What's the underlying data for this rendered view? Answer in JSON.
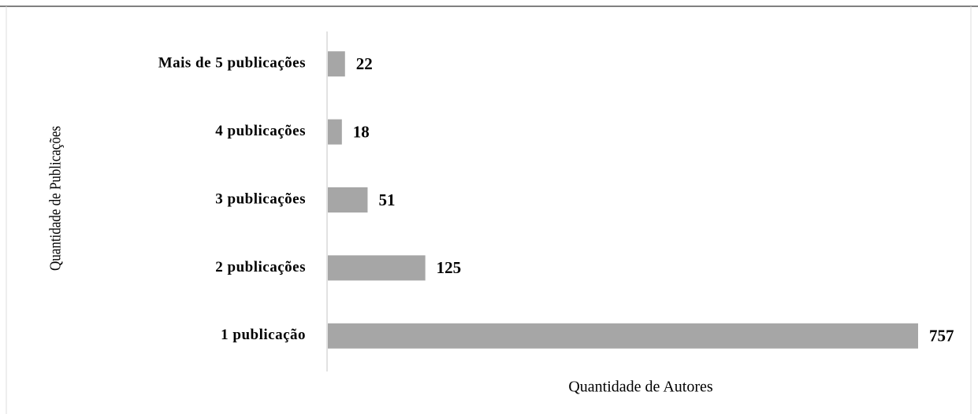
{
  "chart_data": {
    "type": "bar",
    "orientation": "horizontal",
    "categories": [
      "Mais de 5 publicações",
      "4 publicações",
      "3 publicações",
      "2 publicações",
      "1 publicação"
    ],
    "values": [
      22,
      18,
      51,
      125,
      757
    ],
    "color": "#a6a6a6",
    "x_label": "Quantidade de Autores",
    "y_label": "Quantidade de Publicações"
  }
}
